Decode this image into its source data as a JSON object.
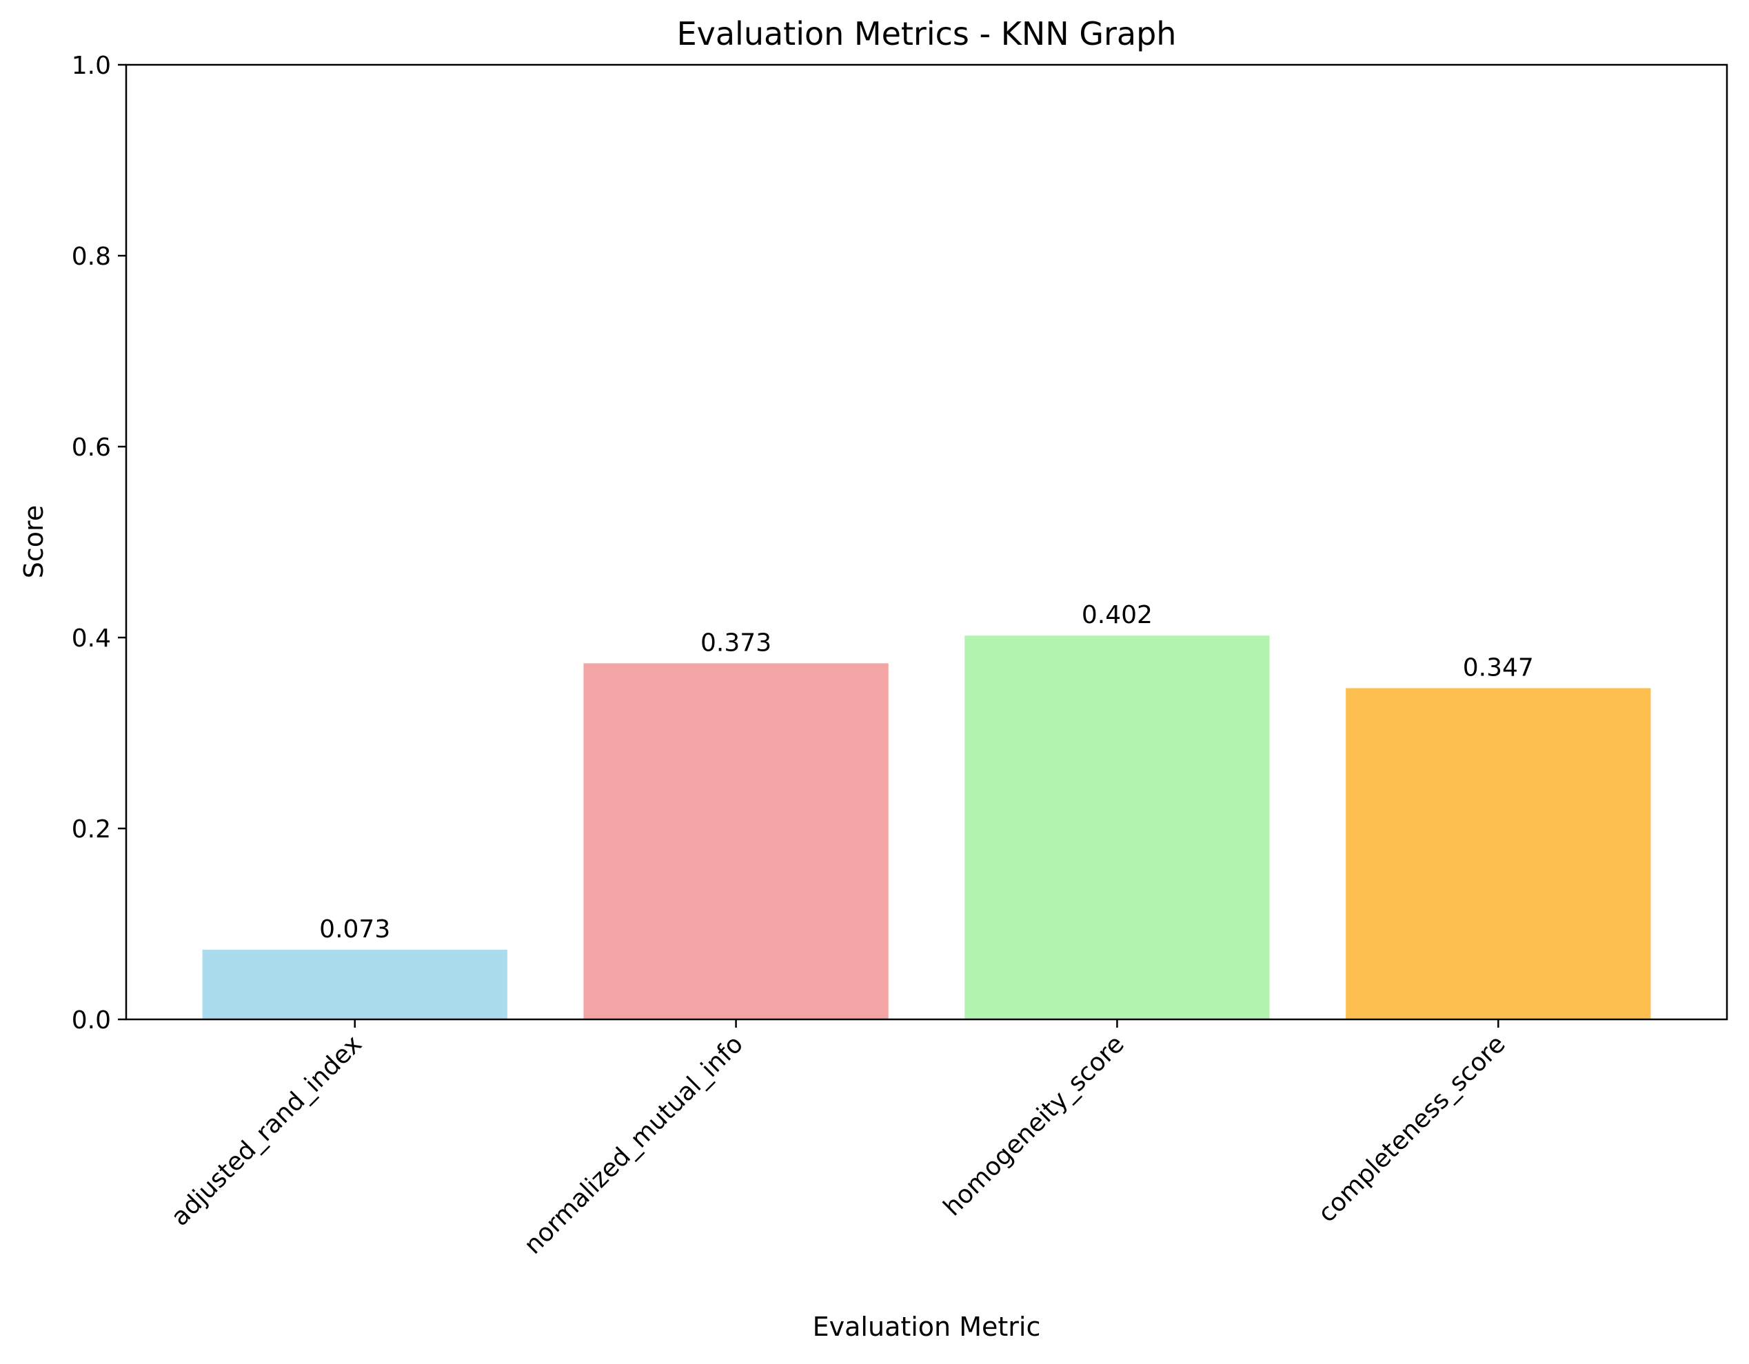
{
  "chart_data": {
    "type": "bar",
    "title": "Evaluation Metrics - KNN Graph",
    "xlabel": "Evaluation Metric",
    "ylabel": "Score",
    "ylim": [
      0,
      1.0
    ],
    "yticks": [
      "0.0",
      "0.2",
      "0.4",
      "0.6",
      "0.8",
      "1.0"
    ],
    "categories": [
      "adjusted_rand_index",
      "normalized_mutual_info",
      "homogeneity_score",
      "completeness_score"
    ],
    "values": [
      0.073,
      0.373,
      0.402,
      0.347
    ],
    "value_labels": [
      "0.073",
      "0.373",
      "0.402",
      "0.347"
    ],
    "colors": [
      "#aadcee",
      "#f3a5a5",
      "#b2f3b0",
      "#fdbf50"
    ],
    "grid": false,
    "legend": "none",
    "xtick_rotation": 45
  }
}
